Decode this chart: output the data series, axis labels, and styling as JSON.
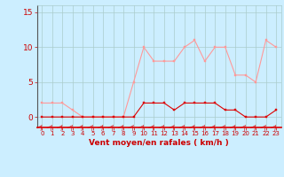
{
  "x": [
    0,
    1,
    2,
    3,
    4,
    5,
    6,
    7,
    8,
    9,
    10,
    11,
    12,
    13,
    14,
    15,
    16,
    17,
    18,
    19,
    20,
    21,
    22,
    23
  ],
  "wind_mean": [
    0,
    0,
    0,
    0,
    0,
    0,
    0,
    0,
    0,
    0,
    2,
    2,
    2,
    1,
    2,
    2,
    2,
    2,
    1,
    1,
    0,
    0,
    0,
    1
  ],
  "wind_gust": [
    2,
    2,
    2,
    1,
    0,
    0,
    0,
    0,
    0,
    5,
    10,
    8,
    8,
    8,
    10,
    11,
    8,
    10,
    10,
    6,
    6,
    5,
    11,
    10
  ],
  "color_mean": "#dd0000",
  "color_gust": "#ff9999",
  "bg_color": "#cceeff",
  "grid_color": "#aacccc",
  "xlabel": "Vent moyen/en rafales ( km/h )",
  "xlabel_color": "#cc0000",
  "yticks": [
    0,
    5,
    10,
    15
  ],
  "xlim": [
    -0.5,
    23.5
  ],
  "ylim": [
    -1.5,
    16
  ],
  "tick_color": "#cc0000",
  "marker_size": 2.0,
  "line_width": 0.8
}
